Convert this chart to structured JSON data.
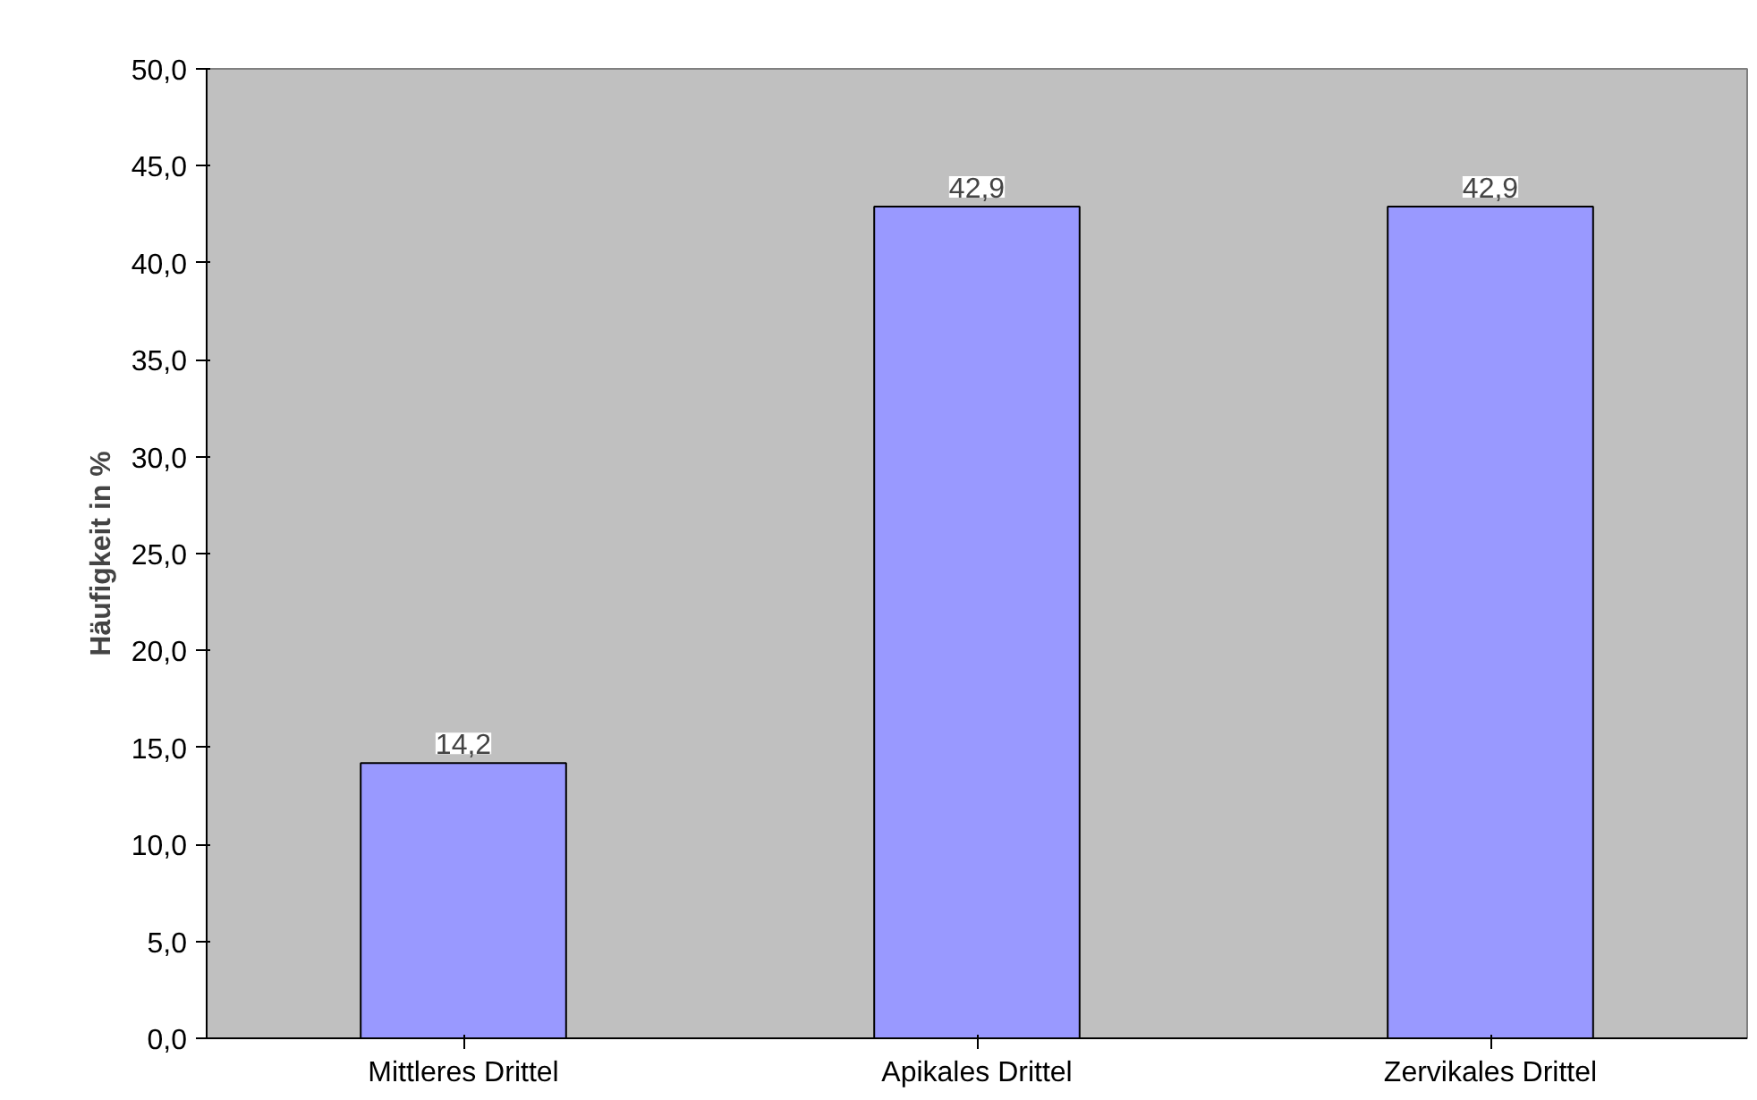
{
  "chart_data": {
    "type": "bar",
    "ylabel": "Häufigkeit in %",
    "categories": [
      "Mittleres Drittel",
      "Apikales Drittel",
      "Zervikales Drittel"
    ],
    "values": [
      14.2,
      42.9,
      42.9
    ],
    "color": "#9999ff",
    "value_labels": [
      "14,2",
      "42,9",
      "42,9"
    ],
    "ylim": [
      0,
      50
    ],
    "yticks": [
      {
        "value": 0,
        "label": "0,0"
      },
      {
        "value": 5,
        "label": "5,0"
      },
      {
        "value": 10,
        "label": "10,0"
      },
      {
        "value": 15,
        "label": "15,0"
      },
      {
        "value": 20,
        "label": "20,0"
      },
      {
        "value": 25,
        "label": "25,0"
      },
      {
        "value": 30,
        "label": "30,0"
      },
      {
        "value": 35,
        "label": "35,0"
      },
      {
        "value": 40,
        "label": "40,0"
      },
      {
        "value": 45,
        "label": "45,0"
      },
      {
        "value": 50,
        "label": "50,0"
      }
    ],
    "grid": false
  }
}
